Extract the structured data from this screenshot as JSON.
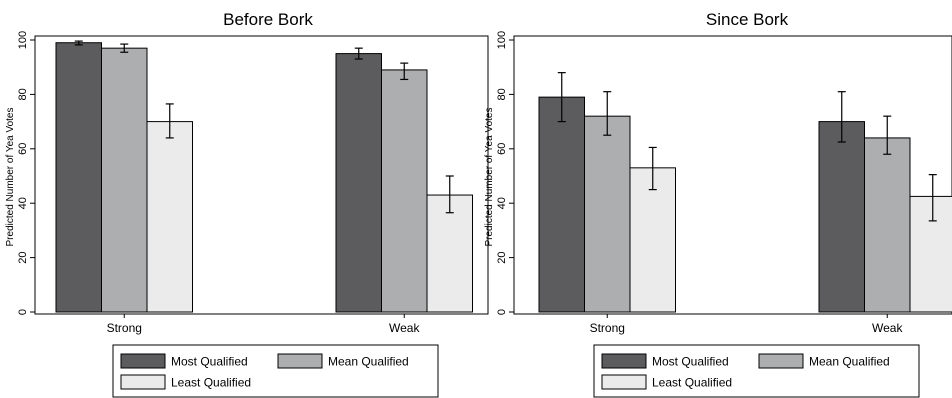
{
  "colors": {
    "Most Qualified": "#5c5c5e",
    "Mean Qualified": "#adaeb0",
    "Least Qualified": "#ebebec"
  },
  "chart_data": [
    {
      "type": "bar",
      "title": "Before Bork",
      "ylabel": "Predicted Number of Yea Votes",
      "xlabel": "",
      "ylim": [
        0,
        100
      ],
      "yticks": [
        0,
        20,
        40,
        60,
        80,
        100
      ],
      "categories": [
        "Strong",
        "Weak"
      ],
      "series": [
        {
          "name": "Most Qualified",
          "values": [
            99,
            95
          ],
          "error_low": [
            98.2,
            93
          ],
          "error_high": [
            99.6,
            97
          ]
        },
        {
          "name": "Mean Qualified",
          "values": [
            97,
            89
          ],
          "error_low": [
            95.5,
            85.5
          ],
          "error_high": [
            98.5,
            91.5
          ]
        },
        {
          "name": "Least Qualified",
          "values": [
            70,
            43
          ],
          "error_low": [
            64,
            36.5
          ],
          "error_high": [
            76.5,
            50
          ]
        }
      ],
      "legend": {
        "placement": "bottom",
        "labels": [
          "Most Qualified",
          "Mean Qualified",
          "Least Qualified"
        ]
      },
      "grid": false
    },
    {
      "type": "bar",
      "title": "Since Bork",
      "ylabel": "Predicted Number of Yea Votes",
      "xlabel": "",
      "ylim": [
        0,
        100
      ],
      "yticks": [
        0,
        20,
        40,
        60,
        80,
        100
      ],
      "categories": [
        "Strong",
        "Weak"
      ],
      "series": [
        {
          "name": "Most Qualified",
          "values": [
            79,
            70
          ],
          "error_low": [
            70,
            62.5
          ],
          "error_high": [
            88,
            81
          ]
        },
        {
          "name": "Mean Qualified",
          "values": [
            72,
            64
          ],
          "error_low": [
            65,
            58
          ],
          "error_high": [
            81,
            72
          ]
        },
        {
          "name": "Least Qualified",
          "values": [
            53,
            42.5
          ],
          "error_low": [
            45,
            33.5
          ],
          "error_high": [
            60.5,
            50.5
          ]
        }
      ],
      "legend": {
        "placement": "bottom",
        "labels": [
          "Most Qualified",
          "Mean Qualified",
          "Least Qualified"
        ]
      },
      "grid": false
    }
  ]
}
